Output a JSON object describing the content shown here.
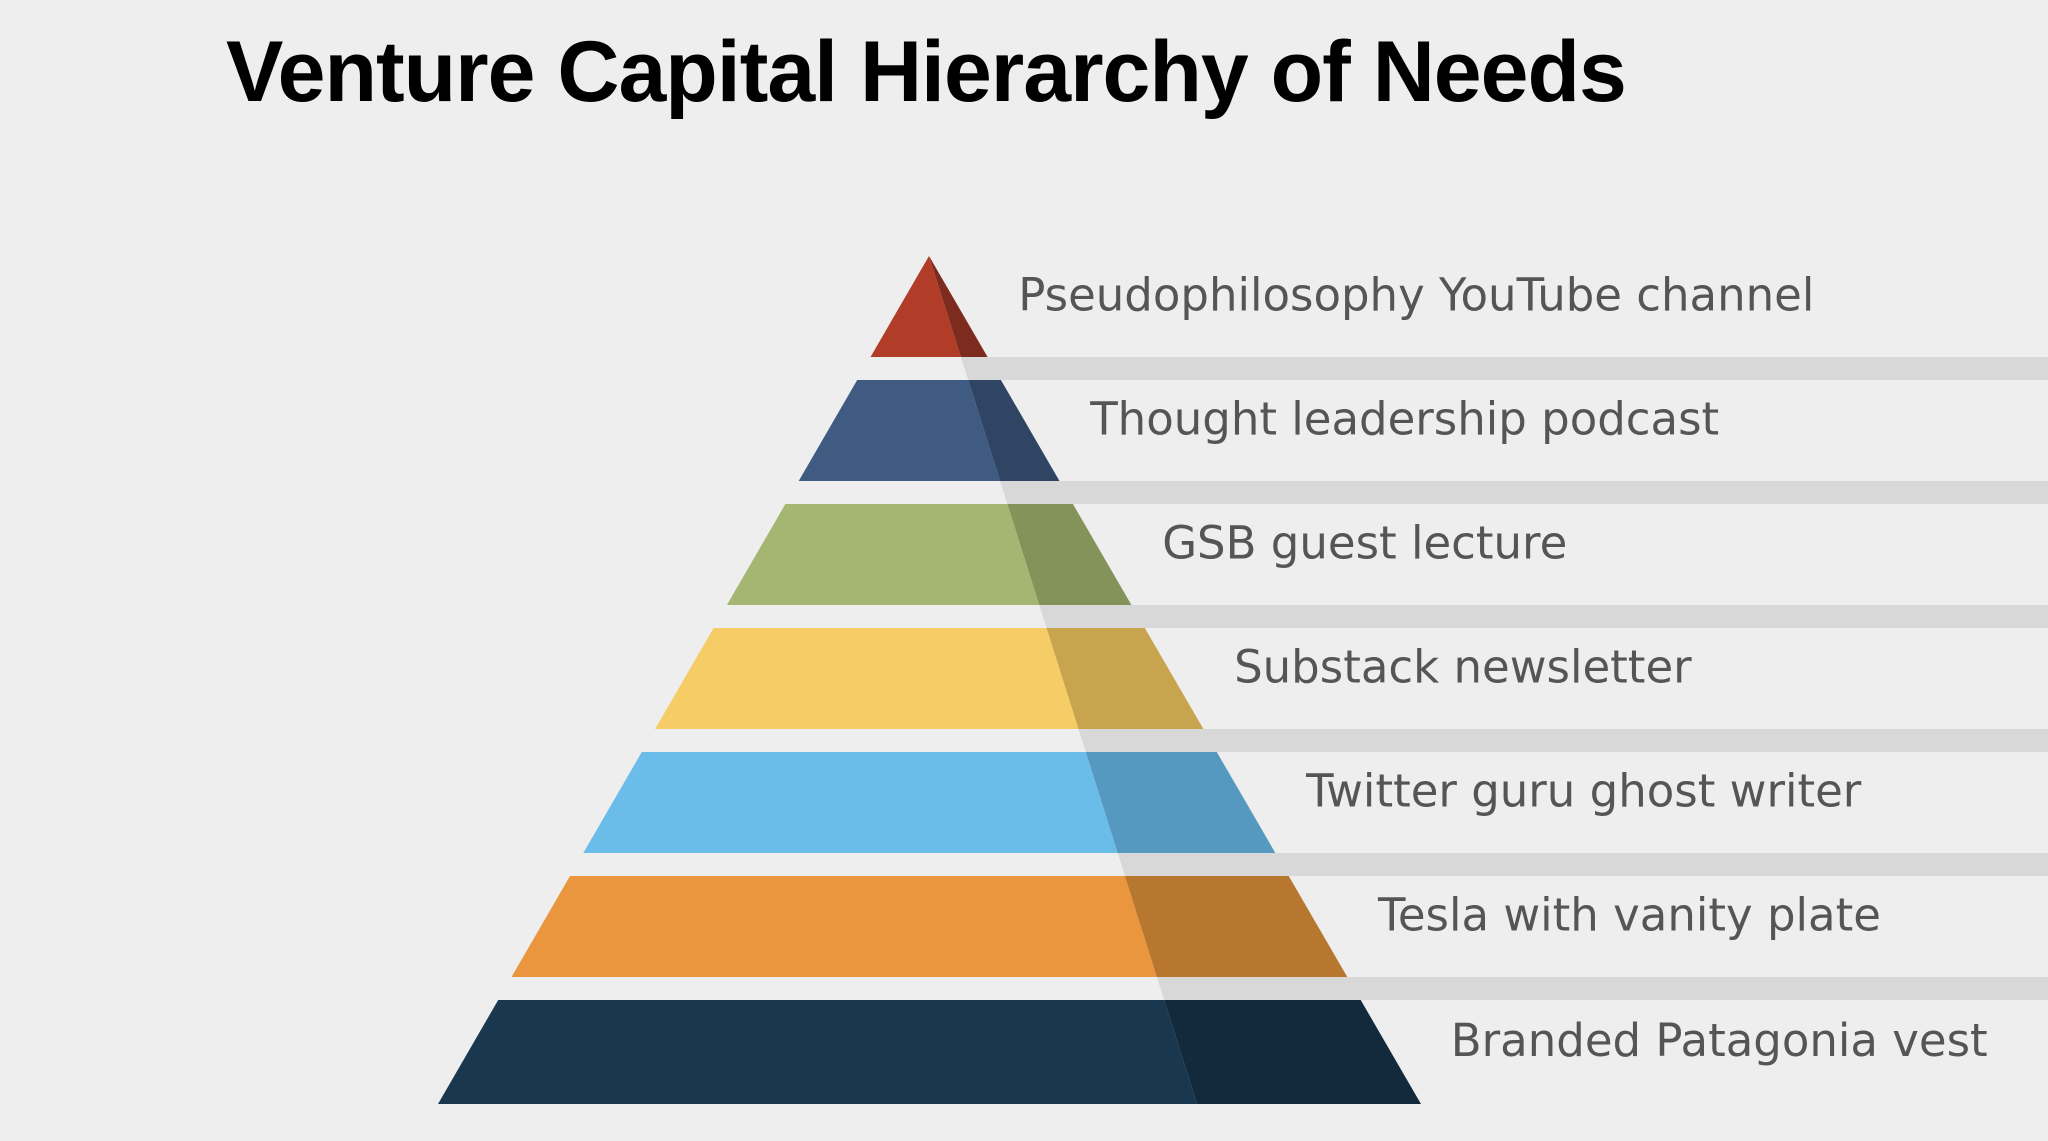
{
  "title": "Venture Capital Hierarchy of Needs",
  "tiers": [
    {
      "label": "Pseudophilosophy YouTube channel",
      "color": "#b13c28",
      "shade": "#7d2b1e"
    },
    {
      "label": "Thought leadership podcast",
      "color": "#3f5b81",
      "shade": "#2f4563"
    },
    {
      "label": "GSB guest lecture",
      "color": "#a5b672",
      "shade": "#84935a"
    },
    {
      "label": "Substack newsletter",
      "color": "#f6cc67",
      "shade": "#c8a44f"
    },
    {
      "label": "Twitter guru ghost writer",
      "color": "#6bbde9",
      "shade": "#5699c0"
    },
    {
      "label": "Tesla with vanity plate",
      "color": "#e9963e",
      "shade": "#b8772f"
    },
    {
      "label": "Branded Patagonia vest",
      "color": "#19384f",
      "shade": "#132a3d"
    }
  ],
  "colors": {
    "background": "#efeeee",
    "band": "#d8d8d8",
    "label_text": "#555555"
  }
}
